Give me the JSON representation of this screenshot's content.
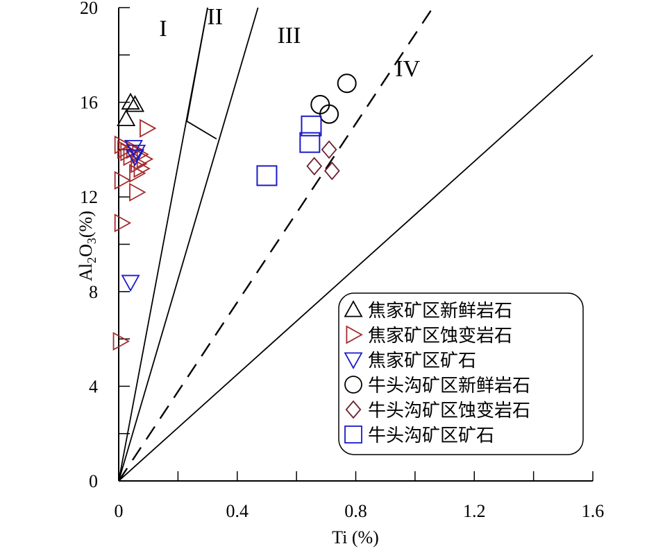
{
  "chart_data": {
    "type": "scatter",
    "xlabel": "Ti (%)",
    "ylabel_parts": [
      "Al",
      "2",
      "O",
      "3",
      "(%)"
    ],
    "xlim": [
      0,
      1.6
    ],
    "ylim": [
      0,
      20
    ],
    "x_ticks": [
      "0",
      "0.4",
      "0.8",
      "1.2",
      "1.6"
    ],
    "y_ticks": [
      "0",
      "4",
      "8",
      "12",
      "16",
      "20"
    ],
    "x_tick_values": [
      0,
      0.4,
      0.8,
      1.2,
      1.6
    ],
    "y_tick_values": [
      0,
      4,
      8,
      12,
      16,
      20
    ],
    "x_minor_step": 0.2,
    "y_minor_step": 2,
    "regions": [
      {
        "label": "I",
        "x": 0.3,
        "y": 18.8
      },
      {
        "label": "II",
        "x": 0.65,
        "y": 19.3
      },
      {
        "label": "III",
        "x": 1.15,
        "y": 18.5
      },
      {
        "label": "IV",
        "x": 1.95,
        "y": 17.1
      }
    ],
    "boundary_lines": [
      {
        "style": "solid",
        "points": [
          [
            0,
            0
          ],
          [
            0.3,
            20
          ]
        ]
      },
      {
        "style": "solid",
        "points": [
          [
            0,
            0
          ],
          [
            0.47,
            20
          ]
        ]
      },
      {
        "style": "dashed",
        "points": [
          [
            0,
            0
          ],
          [
            1.06,
            20
          ]
        ]
      },
      {
        "style": "solid",
        "points": [
          [
            0,
            0
          ],
          [
            1.6,
            18
          ]
        ]
      },
      {
        "style": "solid",
        "points": [
          [
            0.23,
            15.2
          ],
          [
            0.33,
            14.45
          ]
        ]
      },
      {
        "style": "solid",
        "points": [
          [
            0.23,
            15.2
          ],
          [
            0.3,
            20
          ]
        ]
      }
    ],
    "series": [
      {
        "name": "焦家矿区新鲜岩石",
        "marker": "triangle-up",
        "color": "#000000",
        "points": [
          [
            0.04,
            16.0
          ],
          [
            0.055,
            15.9
          ],
          [
            0.025,
            15.3
          ]
        ]
      },
      {
        "name": "焦家矿区蚀变岩石",
        "marker": "triangle-right",
        "color": "#a52a2a",
        "points": [
          [
            0.01,
            14.2
          ],
          [
            0.02,
            14.0
          ],
          [
            0.03,
            13.9
          ],
          [
            0.05,
            14.0
          ],
          [
            0.07,
            13.8
          ],
          [
            0.085,
            13.6
          ],
          [
            0.065,
            13.4
          ],
          [
            0.075,
            13.2
          ],
          [
            0.06,
            13.0
          ],
          [
            0.01,
            12.7
          ],
          [
            0.06,
            12.2
          ],
          [
            0.01,
            10.9
          ],
          [
            0.095,
            14.9
          ],
          [
            0.005,
            5.9
          ],
          [
            0.04,
            13.7
          ]
        ]
      },
      {
        "name": "焦家矿区矿石",
        "marker": "triangle-down",
        "color": "#1a1ac8",
        "points": [
          [
            0.05,
            14.1
          ],
          [
            0.06,
            13.9
          ],
          [
            0.055,
            13.7
          ],
          [
            0.04,
            8.4
          ]
        ]
      },
      {
        "name": "牛头沟矿区新鲜岩石",
        "marker": "circle",
        "color": "#000000",
        "points": [
          [
            0.77,
            16.8
          ],
          [
            0.68,
            15.9
          ],
          [
            0.71,
            15.5
          ]
        ]
      },
      {
        "name": "牛头沟矿区蚀变岩石",
        "marker": "diamond",
        "color": "#6b1f2e",
        "points": [
          [
            0.71,
            14.0
          ],
          [
            0.66,
            13.3
          ],
          [
            0.72,
            13.1
          ]
        ]
      },
      {
        "name": "牛头沟矿区矿石",
        "marker": "square",
        "color": "#1a1ac8",
        "points": [
          [
            0.65,
            15.0
          ],
          [
            0.645,
            14.3
          ],
          [
            0.5,
            12.9
          ]
        ]
      }
    ],
    "legend_position": "bottom-right",
    "grid": false
  }
}
